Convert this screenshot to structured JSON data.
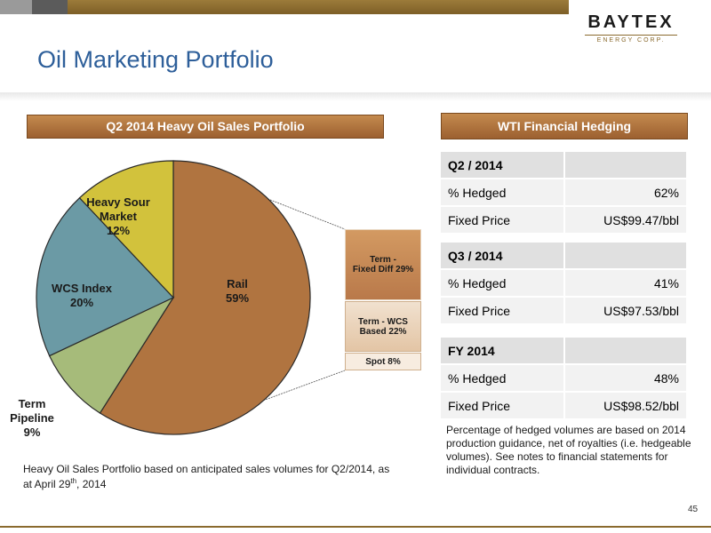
{
  "logo": {
    "name": "BAYTEX",
    "sub": "ENERGY CORP."
  },
  "title": "Oil Marketing Portfolio",
  "left_header": "Q2 2014 Heavy Oil Sales Portfolio",
  "right_header": "WTI Financial Hedging",
  "chart_data": {
    "type": "pie",
    "title": "Q2 2014 Heavy Oil Sales Portfolio",
    "slices": [
      {
        "label": "Rail",
        "value": 59,
        "display": "59%",
        "color": "#b07440"
      },
      {
        "label": "Term Pipeline",
        "value": 9,
        "display": "9%",
        "color": "#a6bb7a"
      },
      {
        "label": "WCS Index",
        "value": 20,
        "display": "20%",
        "color": "#6b9aa5"
      },
      {
        "label": "Heavy Sour Market",
        "value": 12,
        "display": "12%",
        "color": "#d2c23c"
      }
    ],
    "rail_breakdown": [
      {
        "label": "Term - Fixed Diff",
        "value": 29,
        "display": "29%"
      },
      {
        "label": "Term - WCS Based",
        "value": 22,
        "display": "22%"
      },
      {
        "label": "Spot",
        "value": 8,
        "display": "8%"
      }
    ]
  },
  "labels": {
    "rail_name": "Rail",
    "rail_pct": "59%",
    "wcs_name": "WCS Index",
    "wcs_pct": "20%",
    "hsm_name1": "Heavy Sour",
    "hsm_name2": "Market",
    "hsm_pct": "12%",
    "tp_name1": "Term",
    "tp_name2": "Pipeline",
    "tp_pct": "9%",
    "sb1_a": "Term -",
    "sb1_b": "Fixed Diff 29%",
    "sb2_a": "Term - WCS",
    "sb2_b": "Based  22%",
    "sb3": "Spot  8%"
  },
  "hedging": [
    {
      "period": "Q2 / 2014",
      "hedged_label": "% Hedged",
      "hedged": "62%",
      "price_label": "Fixed Price",
      "price": "US$99.47/bbl"
    },
    {
      "period": "Q3 / 2014",
      "hedged_label": "% Hedged",
      "hedged": "41%",
      "price_label": "Fixed Price",
      "price": "US$97.53/bbl"
    },
    {
      "period": "FY 2014",
      "hedged_label": "% Hedged",
      "hedged": "48%",
      "price_label": "Fixed Price",
      "price": "US$98.52/bbl"
    }
  ],
  "note_right": "Percentage of hedged volumes are based on 2014 production guidance, net of royalties (i.e. hedgeable volumes). See notes to financial statements for individual contracts.",
  "note_left_a": "Heavy Oil Sales Portfolio based on anticipated sales volumes for Q2/2014, as at April 29",
  "note_left_sup": "th",
  "note_left_b": ", 2014",
  "page_number": "45"
}
